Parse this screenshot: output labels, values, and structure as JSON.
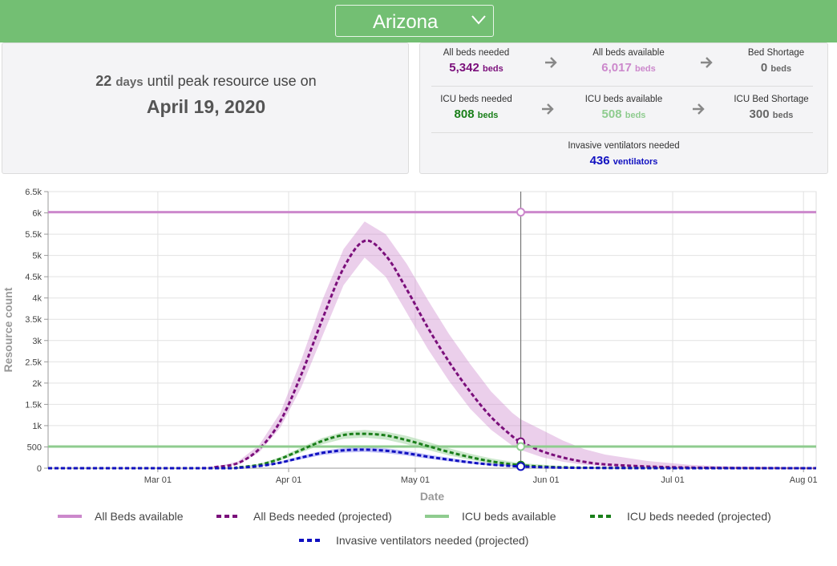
{
  "header": {
    "state_selected": "Arizona",
    "chevron_icon": "chevron-down-icon",
    "bar_color": "#73bf73"
  },
  "peak": {
    "days": "22",
    "days_unit": "days",
    "text": "until peak resource use on",
    "date": "April 19, 2020"
  },
  "stats": {
    "all_beds_needed": {
      "label": "All beds needed",
      "value": "5,342",
      "unit": "beds",
      "color": "#7b0f7b"
    },
    "all_beds_available": {
      "label": "All beds available",
      "value": "6,017",
      "unit": "beds",
      "color": "#cc88cc"
    },
    "bed_shortage": {
      "label": "Bed Shortage",
      "value": "0",
      "unit": "beds",
      "color": "#666666"
    },
    "icu_beds_needed": {
      "label": "ICU beds needed",
      "value": "808",
      "unit": "beds",
      "color": "#1a7f1a"
    },
    "icu_beds_available": {
      "label": "ICU beds available",
      "value": "508",
      "unit": "beds",
      "color": "#8fcc8f"
    },
    "icu_bed_shortage": {
      "label": "ICU Bed Shortage",
      "value": "300",
      "unit": "beds",
      "color": "#666666"
    },
    "ventilators_needed": {
      "label": "Invasive ventilators needed",
      "value": "436",
      "unit": "ventilators",
      "color": "#1010c0"
    },
    "arrow_icon": "arrow-right-icon"
  },
  "chart_data": {
    "type": "line",
    "xlabel": "Date",
    "ylabel": "Resource count",
    "x_ticks": [
      "Mar 01",
      "Apr 01",
      "May 01",
      "Jun 01",
      "Jul 01",
      "Aug 01"
    ],
    "y_ticks": [
      "0",
      "500",
      "1k",
      "1.5k",
      "2k",
      "2.5k",
      "3k",
      "3.5k",
      "4k",
      "4.5k",
      "5k",
      "5.5k",
      "6k",
      "6.5k"
    ],
    "ylim": [
      0,
      6500
    ],
    "xlim": [
      "2020-02-04",
      "2020-08-04"
    ],
    "hover_date": "2020-05-26",
    "grid": true,
    "legend_position": "bottom",
    "series": [
      {
        "name": "All Beds available",
        "style": "solid",
        "color": "#cc88cc",
        "x": [
          "2020-02-04",
          "2020-08-04"
        ],
        "y": [
          6017,
          6017
        ]
      },
      {
        "name": "All Beds needed (projected)",
        "style": "dashed",
        "color": "#7b0f7b",
        "x": [
          "2020-02-04",
          "2020-03-10",
          "2020-03-15",
          "2020-03-20",
          "2020-03-25",
          "2020-03-30",
          "2020-04-04",
          "2020-04-09",
          "2020-04-14",
          "2020-04-19",
          "2020-04-24",
          "2020-04-29",
          "2020-05-04",
          "2020-05-09",
          "2020-05-14",
          "2020-05-19",
          "2020-05-24",
          "2020-05-26",
          "2020-05-31",
          "2020-06-05",
          "2020-06-10",
          "2020-06-15",
          "2020-06-25",
          "2020-07-05",
          "2020-07-15",
          "2020-08-04"
        ],
        "y": [
          0,
          0,
          30,
          120,
          450,
          1100,
          2200,
          3500,
          4700,
          5342,
          5000,
          4200,
          3300,
          2500,
          1800,
          1200,
          750,
          620,
          400,
          250,
          150,
          90,
          40,
          15,
          5,
          0
        ],
        "band_low": [
          0,
          0,
          20,
          90,
          370,
          950,
          1900,
          3100,
          4300,
          4950,
          4500,
          3650,
          2800,
          2050,
          1400,
          900,
          530,
          430,
          260,
          150,
          80,
          40,
          15,
          5,
          2,
          0
        ],
        "band_high": [
          0,
          0,
          40,
          160,
          540,
          1300,
          2550,
          3950,
          5150,
          5800,
          5500,
          4800,
          3950,
          3150,
          2450,
          1800,
          1300,
          1150,
          900,
          650,
          450,
          320,
          170,
          80,
          40,
          10
        ]
      },
      {
        "name": "ICU beds available",
        "style": "solid",
        "color": "#8fcc8f",
        "x": [
          "2020-02-04",
          "2020-08-04"
        ],
        "y": [
          508,
          508
        ]
      },
      {
        "name": "ICU beds needed (projected)",
        "style": "dashed",
        "color": "#1a7f1a",
        "x": [
          "2020-02-04",
          "2020-03-15",
          "2020-03-20",
          "2020-03-25",
          "2020-03-30",
          "2020-04-04",
          "2020-04-09",
          "2020-04-14",
          "2020-04-19",
          "2020-04-24",
          "2020-04-29",
          "2020-05-04",
          "2020-05-09",
          "2020-05-14",
          "2020-05-19",
          "2020-05-26",
          "2020-06-05",
          "2020-06-20",
          "2020-07-10",
          "2020-08-04"
        ],
        "y": [
          0,
          0,
          20,
          80,
          220,
          430,
          640,
          780,
          808,
          770,
          660,
          520,
          380,
          260,
          160,
          70,
          20,
          5,
          0,
          0
        ],
        "band_low": [
          0,
          0,
          15,
          60,
          180,
          370,
          560,
          690,
          720,
          670,
          560,
          430,
          300,
          195,
          110,
          40,
          10,
          2,
          0,
          0
        ],
        "band_high": [
          0,
          0,
          25,
          100,
          260,
          490,
          710,
          860,
          900,
          860,
          760,
          620,
          470,
          340,
          230,
          120,
          45,
          15,
          3,
          0
        ]
      },
      {
        "name": "Invasive ventilators needed (projected)",
        "style": "dashed",
        "color": "#1010c0",
        "x": [
          "2020-02-04",
          "2020-03-15",
          "2020-03-20",
          "2020-03-25",
          "2020-03-30",
          "2020-04-04",
          "2020-04-09",
          "2020-04-14",
          "2020-04-19",
          "2020-04-24",
          "2020-04-29",
          "2020-05-04",
          "2020-05-09",
          "2020-05-14",
          "2020-05-19",
          "2020-05-26",
          "2020-06-05",
          "2020-06-20",
          "2020-07-10",
          "2020-08-04"
        ],
        "y": [
          0,
          0,
          10,
          50,
          130,
          250,
          360,
          420,
          436,
          410,
          350,
          270,
          200,
          135,
          85,
          40,
          12,
          3,
          0,
          0
        ],
        "band_low": [
          0,
          0,
          8,
          40,
          105,
          210,
          310,
          365,
          380,
          355,
          295,
          225,
          160,
          105,
          65,
          28,
          8,
          2,
          0,
          0
        ],
        "band_high": [
          0,
          0,
          12,
          60,
          155,
          290,
          410,
          475,
          495,
          470,
          410,
          320,
          245,
          170,
          110,
          55,
          18,
          5,
          1,
          0
        ]
      }
    ]
  }
}
